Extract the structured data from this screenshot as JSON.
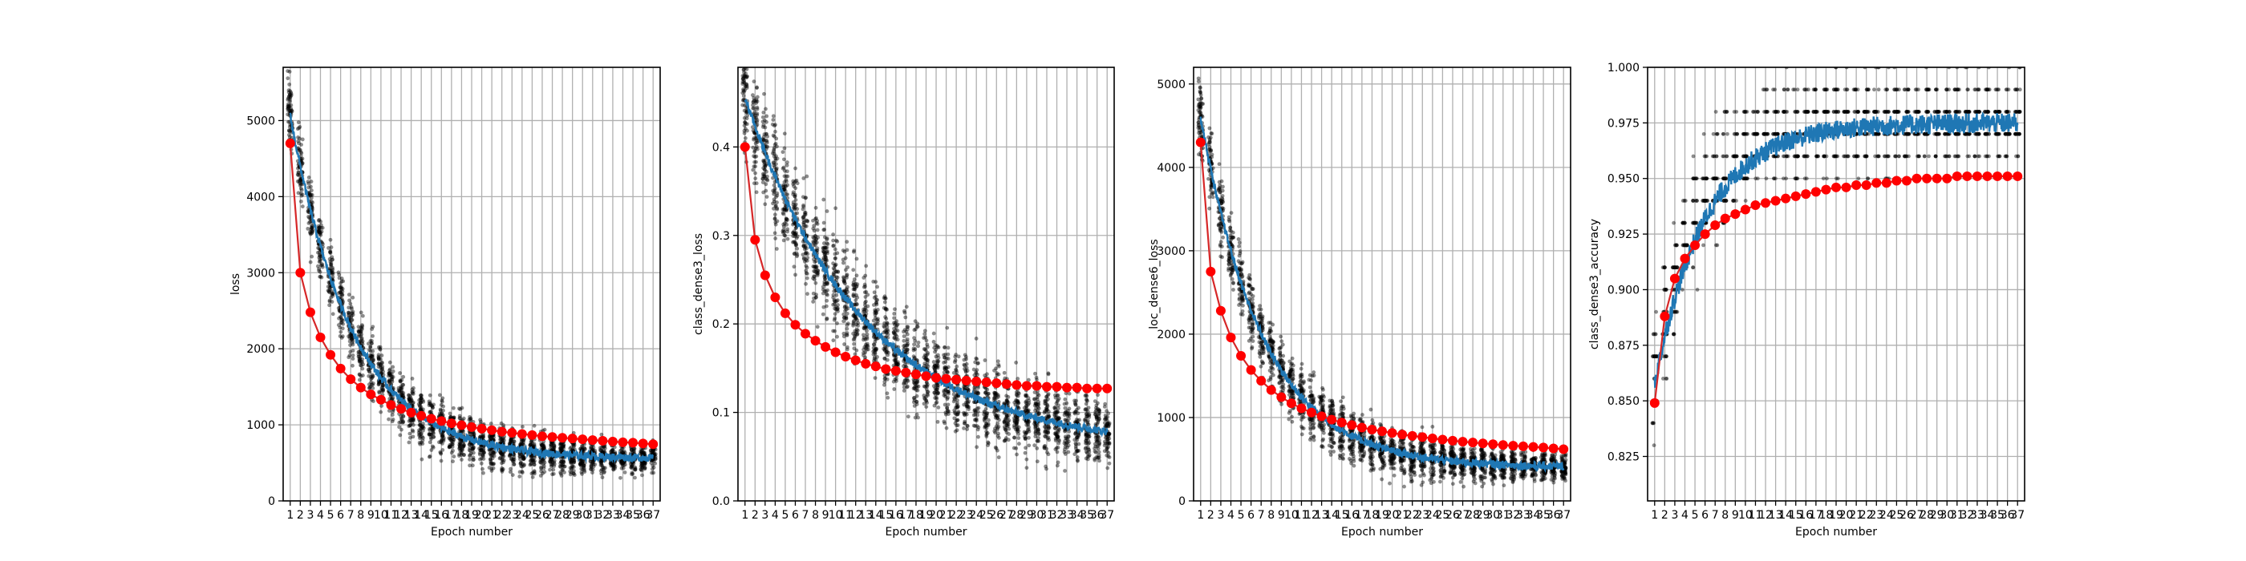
{
  "colors": {
    "scatter": "#000000",
    "train_line": "#1f77b4",
    "val_line": "#d62728",
    "val_marker": "#ff0000",
    "grid": "#b0b0b0"
  },
  "epochs": [
    "1",
    "2",
    "3",
    "4",
    "5",
    "6",
    "7",
    "8",
    "9",
    "10",
    "11",
    "12",
    "13",
    "14",
    "15",
    "16",
    "17",
    "18",
    "19",
    "20",
    "21",
    "22",
    "23",
    "24",
    "25",
    "26",
    "27",
    "28",
    "29",
    "30",
    "31",
    "32",
    "33",
    "34",
    "35",
    "36",
    "37"
  ],
  "chart_data": [
    {
      "type": "scatter",
      "title": "",
      "xlabel": "Epoch number",
      "ylabel": "loss",
      "grid": true,
      "xlim": [
        0.3,
        37.7
      ],
      "ylim": [
        0,
        5700
      ],
      "yticks": [
        0,
        1000,
        2000,
        3000,
        4000,
        5000
      ],
      "ytick_labels": [
        "0",
        "1000",
        "2000",
        "3000",
        "4000",
        "5000"
      ],
      "series": [
        {
          "role": "per-batch samples (black scatter)",
          "y_start": 5600,
          "y_asymptote": 550,
          "decay": 0.16,
          "spread_start": 650,
          "spread_end": 230
        },
        {
          "role": "per-batch line (blue)",
          "y_start": 5600,
          "y_asymptote": 550,
          "decay": 0.16
        },
        {
          "role": "per-epoch markers (red)",
          "x": [
            1,
            2,
            3,
            4,
            5,
            6,
            7,
            8,
            9,
            10,
            11,
            12,
            13,
            14,
            15,
            16,
            17,
            18,
            19,
            20,
            21,
            22,
            23,
            24,
            25,
            26,
            27,
            28,
            29,
            30,
            31,
            32,
            33,
            34,
            35,
            36,
            37
          ],
          "y": [
            4700,
            3000,
            2480,
            2150,
            1920,
            1740,
            1600,
            1490,
            1400,
            1330,
            1260,
            1210,
            1160,
            1120,
            1080,
            1050,
            1020,
            995,
            970,
            950,
            930,
            910,
            895,
            880,
            865,
            850,
            840,
            830,
            820,
            810,
            800,
            790,
            780,
            770,
            765,
            755,
            745
          ]
        }
      ]
    },
    {
      "type": "scatter",
      "title": "",
      "xlabel": "Epoch number",
      "ylabel": "class_dense3_loss",
      "grid": true,
      "xlim": [
        0.3,
        37.7
      ],
      "ylim": [
        0,
        0.49
      ],
      "yticks": [
        0,
        0.1,
        0.2,
        0.3,
        0.4
      ],
      "ytick_labels": [
        "0.0",
        "0.1",
        "0.2",
        "0.3",
        "0.4"
      ],
      "series": [
        {
          "role": "per-batch samples (black scatter)",
          "y_start": 0.48,
          "y_asymptote": 0.06,
          "decay": 0.085,
          "spread_start": 0.085,
          "spread_end": 0.05
        },
        {
          "role": "per-batch line (blue)",
          "y_start": 0.48,
          "y_asymptote": 0.06,
          "decay": 0.085
        },
        {
          "role": "per-epoch markers (red)",
          "x": [
            1,
            2,
            3,
            4,
            5,
            6,
            7,
            8,
            9,
            10,
            11,
            12,
            13,
            14,
            15,
            16,
            17,
            18,
            19,
            20,
            21,
            22,
            23,
            24,
            25,
            26,
            27,
            28,
            29,
            30,
            31,
            32,
            33,
            34,
            35,
            36,
            37
          ],
          "y": [
            0.4,
            0.295,
            0.255,
            0.23,
            0.212,
            0.199,
            0.189,
            0.181,
            0.174,
            0.168,
            0.163,
            0.159,
            0.155,
            0.152,
            0.149,
            0.147,
            0.145,
            0.143,
            0.141,
            0.139,
            0.138,
            0.137,
            0.136,
            0.135,
            0.134,
            0.133,
            0.132,
            0.131,
            0.13,
            0.13,
            0.129,
            0.129,
            0.128,
            0.128,
            0.127,
            0.127,
            0.127
          ]
        }
      ]
    },
    {
      "type": "scatter",
      "title": "",
      "xlabel": "Epoch number",
      "ylabel": "loc_dense6_loss",
      "grid": true,
      "xlim": [
        0.3,
        37.7
      ],
      "ylim": [
        0,
        5200
      ],
      "yticks": [
        0,
        1000,
        2000,
        3000,
        4000,
        5000
      ],
      "ytick_labels": [
        "0",
        "1000",
        "2000",
        "3000",
        "4000",
        "5000"
      ],
      "series": [
        {
          "role": "per-batch samples (black scatter)",
          "y_start": 5100,
          "y_asymptote": 400,
          "decay": 0.16,
          "spread_start": 600,
          "spread_end": 200
        },
        {
          "role": "per-batch line (blue)",
          "y_start": 5100,
          "y_asymptote": 400,
          "decay": 0.16
        },
        {
          "role": "per-epoch markers (red)",
          "x": [
            1,
            2,
            3,
            4,
            5,
            6,
            7,
            8,
            9,
            10,
            11,
            12,
            13,
            14,
            15,
            16,
            17,
            18,
            19,
            20,
            21,
            22,
            23,
            24,
            25,
            26,
            27,
            28,
            29,
            30,
            31,
            32,
            33,
            34,
            35,
            36,
            37
          ],
          "y": [
            4300,
            2750,
            2280,
            1960,
            1740,
            1570,
            1440,
            1330,
            1245,
            1170,
            1110,
            1060,
            1015,
            975,
            940,
            910,
            880,
            855,
            835,
            815,
            795,
            780,
            765,
            750,
            735,
            722,
            710,
            700,
            690,
            680,
            670,
            662,
            655,
            648,
            640,
            630,
            620
          ]
        }
      ]
    },
    {
      "type": "scatter",
      "title": "",
      "xlabel": "Epoch number",
      "ylabel": "class_dense3_accuracy",
      "grid": true,
      "xlim": [
        0.3,
        37.7
      ],
      "ylim": [
        0.805,
        1.0
      ],
      "yticks": [
        0.825,
        0.85,
        0.875,
        0.9,
        0.925,
        0.95,
        0.975,
        1.0
      ],
      "ytick_labels": [
        "0.825",
        "0.850",
        "0.875",
        "0.900",
        "0.925",
        "0.950",
        "0.975",
        "1.000"
      ],
      "series": [
        {
          "role": "per-batch samples (black scatter, quantized to 0.01)",
          "y_start": 0.84,
          "y_asymptote": 0.975,
          "decay": 0.25,
          "spread_start": 0.04,
          "spread_end": 0.03
        },
        {
          "role": "per-batch line (blue)",
          "y_start": 0.84,
          "y_asymptote": 0.975,
          "decay": 0.2
        },
        {
          "role": "per-epoch markers (red)",
          "x": [
            1,
            2,
            3,
            4,
            5,
            6,
            7,
            8,
            9,
            10,
            11,
            12,
            13,
            14,
            15,
            16,
            17,
            18,
            19,
            20,
            21,
            22,
            23,
            24,
            25,
            26,
            27,
            28,
            29,
            30,
            31,
            32,
            33,
            34,
            35,
            36,
            37
          ],
          "y": [
            0.849,
            0.888,
            0.905,
            0.914,
            0.92,
            0.925,
            0.929,
            0.932,
            0.934,
            0.936,
            0.938,
            0.939,
            0.94,
            0.941,
            0.942,
            0.943,
            0.944,
            0.945,
            0.946,
            0.946,
            0.947,
            0.947,
            0.948,
            0.948,
            0.949,
            0.949,
            0.95,
            0.95,
            0.95,
            0.95,
            0.951,
            0.951,
            0.951,
            0.951,
            0.951,
            0.951,
            0.951
          ]
        }
      ]
    }
  ]
}
